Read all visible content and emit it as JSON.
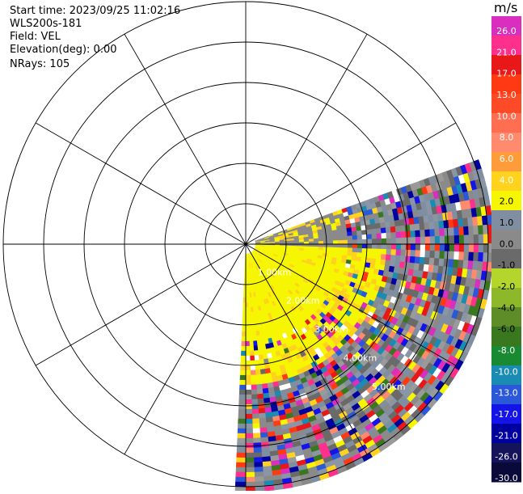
{
  "header": {
    "start_time": "Start time: 2023/09/25 11:02:16",
    "instrument": "WLS200s-181",
    "field": "Field: VEL",
    "elevation": "Elevation(deg): 0.00",
    "nrays": "NRays: 105"
  },
  "chart_data": {
    "type": "heatmap",
    "projection": "polar-ppi",
    "field": "VEL",
    "units": "m/s",
    "sector_azimuth_deg": [
      70,
      180
    ],
    "range_rings_km": [
      1,
      2,
      3,
      4,
      5,
      6
    ],
    "range_ring_labels": [
      "1.00km",
      "2.00km",
      "3.00km",
      "4.00km",
      "5.00km"
    ],
    "range_label_azimuth_deg": 135,
    "max_range_km": 6.1,
    "spoke_interval_deg": 30,
    "colorbar": {
      "ticks": [
        "26.0",
        "21.0",
        "17.0",
        "13.0",
        "10.0",
        "8.0",
        "6.0",
        "4.0",
        "2.0",
        "1.0",
        "0.0",
        "-1.0",
        "-2.0",
        "-4.0",
        "-6.0",
        "-8.0",
        "-10.0",
        "-13.0",
        "-17.0",
        "-21.0",
        "-26.0",
        "-30.0"
      ],
      "colors": [
        "#d82fbe",
        "#ff2f8e",
        "#e81818",
        "#ff3a12",
        "#ff4a28",
        "#ff6e50",
        "#ff8a6e",
        "#ff9c3a",
        "#ffd21e",
        "#f6f600",
        "#7f8ea0",
        "#8a8a8a",
        "#6a6a6a",
        "#b4d62c",
        "#8cb82a",
        "#5e8c28",
        "#3a7820",
        "#1a8a32",
        "#1a8cb4",
        "#2a58d8",
        "#1414e8",
        "#0000a0",
        "#14145a",
        "#0a0a3a"
      ]
    },
    "regions": [
      {
        "description": "near-range yellow zone",
        "field_value_ms": 4.0,
        "azimuth_deg": [
          90,
          180
        ],
        "range_km": [
          0,
          3.5
        ]
      },
      {
        "description": "clutter / noise",
        "field_value_ms": "mixed",
        "azimuth_deg": [
          70,
          180
        ],
        "range_km": [
          2.5,
          6.1
        ]
      }
    ]
  }
}
